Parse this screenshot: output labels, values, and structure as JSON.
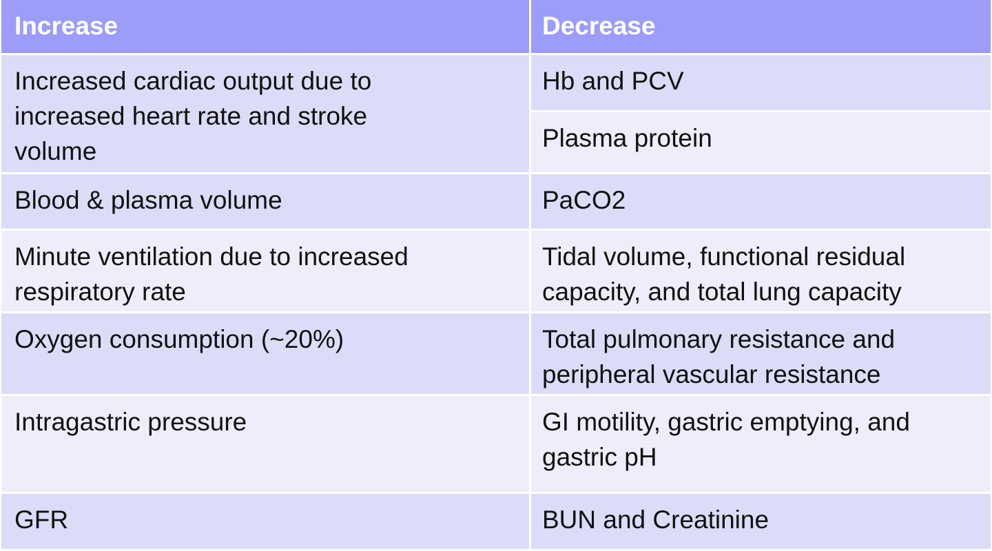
{
  "table": {
    "header": [
      "Increase",
      "Decrease"
    ],
    "rows": [
      [
        "Increased cardiac output due to increased heart rate and stroke volume",
        [
          "Hb and PCV",
          "Plasma protein"
        ]
      ],
      [
        "Blood & plasma volume",
        "PaCO2"
      ],
      [
        "Minute ventilation due to increased respiratory rate",
        "Tidal volume, functional residual capacity, and total lung capacity"
      ],
      [
        "Oxygen consumption (~20%)",
        "Total pulmonary resistance and peripheral vascular resistance"
      ],
      [
        "Intragastric pressure",
        "GI motility, gastric emptying, and gastric pH"
      ],
      [
        "GFR",
        "BUN and Creatinine"
      ]
    ]
  }
}
